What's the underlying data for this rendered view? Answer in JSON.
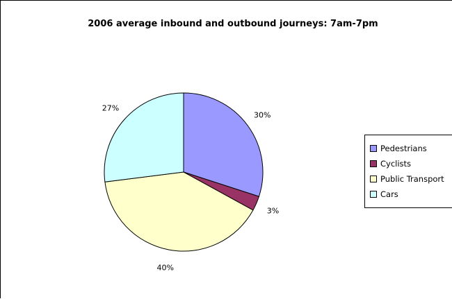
{
  "chart_data": {
    "type": "pie",
    "title": "2006 average inbound and outbound journeys: 7am-7pm",
    "categories": [
      "Pedestrians",
      "Cyclists",
      "Public Transport",
      "Cars"
    ],
    "values": [
      30,
      3,
      40,
      27
    ],
    "data_labels": [
      "30%",
      "3%",
      "40%",
      "27%"
    ],
    "colors": [
      "#9999ff",
      "#993366",
      "#ffffcc",
      "#ccffff"
    ],
    "legend_position": "right"
  }
}
